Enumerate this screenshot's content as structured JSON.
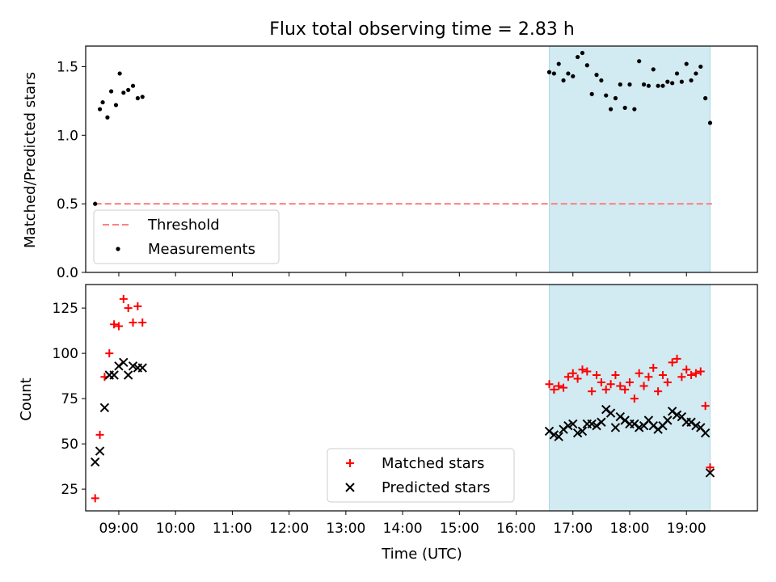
{
  "figure": {
    "title": "Flux total observing time = 2.83 h",
    "xlabel": "Time (UTC)",
    "colors": {
      "shade": "#add8e6",
      "matched": "#ff0000",
      "predicted": "#000000",
      "threshold": "#ff7f7f",
      "measurement": "#000000"
    }
  },
  "chart_data": [
    {
      "type": "scatter",
      "ylabel": "Matched/Predicted stars",
      "xlim": [
        "08:25",
        "20:15"
      ],
      "ylim": [
        0,
        1.65
      ],
      "yticks": [
        0.0,
        0.5,
        1.0,
        1.5
      ],
      "ytick_labels": [
        "0.0",
        "0.5",
        "1.0",
        "1.5"
      ],
      "shaded_span": [
        "16:35",
        "19:25"
      ],
      "threshold": {
        "name": "Threshold",
        "value": 0.5,
        "x": [
          "08:35",
          "19:27"
        ]
      },
      "legend": {
        "placement": "lower-left",
        "entries": [
          "Threshold",
          "Measurements"
        ]
      },
      "series": [
        {
          "name": "Measurements",
          "x": [
            "08:35",
            "08:40",
            "08:43",
            "08:48",
            "08:52",
            "08:57",
            "09:01",
            "09:05",
            "09:10",
            "09:15",
            "09:20",
            "09:25",
            "16:35",
            "16:40",
            "16:45",
            "16:50",
            "16:55",
            "17:00",
            "17:05",
            "17:10",
            "17:15",
            "17:20",
            "17:25",
            "17:30",
            "17:35",
            "17:40",
            "17:45",
            "17:50",
            "17:55",
            "18:00",
            "18:05",
            "18:10",
            "18:15",
            "18:20",
            "18:25",
            "18:30",
            "18:35",
            "18:40",
            "18:45",
            "18:50",
            "18:55",
            "19:00",
            "19:05",
            "19:10",
            "19:15",
            "19:20",
            "19:25"
          ],
          "y": [
            0.5,
            1.19,
            1.24,
            1.13,
            1.32,
            1.22,
            1.45,
            1.31,
            1.33,
            1.36,
            1.27,
            1.28,
            1.46,
            1.45,
            1.52,
            1.4,
            1.45,
            1.43,
            1.57,
            1.6,
            1.51,
            1.3,
            1.44,
            1.4,
            1.29,
            1.19,
            1.27,
            1.37,
            1.2,
            1.37,
            1.19,
            1.54,
            1.37,
            1.36,
            1.48,
            1.36,
            1.36,
            1.39,
            1.38,
            1.45,
            1.39,
            1.52,
            1.4,
            1.45,
            1.5,
            1.27,
            1.09
          ]
        }
      ]
    },
    {
      "type": "scatter",
      "ylabel": "Count",
      "xlim": [
        "08:25",
        "20:15"
      ],
      "ylim": [
        13,
        138
      ],
      "yticks": [
        25,
        50,
        75,
        100,
        125
      ],
      "ytick_labels": [
        "25",
        "50",
        "75",
        "100",
        "125"
      ],
      "xtick_labels": [
        "09:00",
        "10:00",
        "11:00",
        "12:00",
        "13:00",
        "14:00",
        "15:00",
        "16:00",
        "17:00",
        "18:00",
        "19:00"
      ],
      "shaded_span": [
        "16:35",
        "19:25"
      ],
      "legend": {
        "placement": "lower-center",
        "entries": [
          "Matched stars",
          "Predicted stars"
        ]
      },
      "series": [
        {
          "name": "Matched stars",
          "marker": "plus",
          "x": [
            "08:35",
            "08:40",
            "08:45",
            "08:50",
            "08:55",
            "09:00",
            "09:05",
            "09:10",
            "09:15",
            "09:20",
            "09:25",
            "16:35",
            "16:40",
            "16:45",
            "16:50",
            "16:55",
            "17:00",
            "17:05",
            "17:10",
            "17:15",
            "17:20",
            "17:25",
            "17:30",
            "17:35",
            "17:40",
            "17:45",
            "17:50",
            "17:55",
            "18:00",
            "18:05",
            "18:10",
            "18:15",
            "18:20",
            "18:25",
            "18:30",
            "18:35",
            "18:40",
            "18:45",
            "18:50",
            "18:55",
            "19:00",
            "19:05",
            "19:10",
            "19:15",
            "19:20",
            "19:25"
          ],
          "y": [
            20,
            55,
            87,
            100,
            116,
            115,
            130,
            125,
            117,
            126,
            117,
            83,
            80,
            82,
            81,
            87,
            89,
            86,
            91,
            90,
            79,
            88,
            84,
            80,
            83,
            88,
            82,
            80,
            84,
            75,
            89,
            82,
            87,
            92,
            79,
            88,
            84,
            95,
            97,
            87,
            91,
            88,
            89,
            90,
            71,
            37
          ]
        },
        {
          "name": "Predicted stars",
          "marker": "x",
          "x": [
            "08:35",
            "08:40",
            "08:45",
            "08:50",
            "08:55",
            "09:00",
            "09:05",
            "09:10",
            "09:15",
            "09:20",
            "09:25",
            "16:35",
            "16:40",
            "16:45",
            "16:50",
            "16:55",
            "17:00",
            "17:05",
            "17:10",
            "17:15",
            "17:20",
            "17:25",
            "17:30",
            "17:35",
            "17:40",
            "17:45",
            "17:50",
            "17:55",
            "18:00",
            "18:05",
            "18:10",
            "18:15",
            "18:20",
            "18:25",
            "18:30",
            "18:35",
            "18:40",
            "18:45",
            "18:50",
            "18:55",
            "19:00",
            "19:05",
            "19:10",
            "19:15",
            "19:20",
            "19:25"
          ],
          "y": [
            40,
            46,
            70,
            88,
            88,
            93,
            95,
            88,
            93,
            92,
            92,
            57,
            55,
            54,
            58,
            60,
            61,
            56,
            57,
            61,
            61,
            60,
            62,
            69,
            67,
            59,
            65,
            63,
            61,
            61,
            59,
            60,
            63,
            60,
            58,
            60,
            63,
            68,
            66,
            65,
            62,
            62,
            60,
            59,
            56,
            34
          ]
        }
      ]
    }
  ]
}
